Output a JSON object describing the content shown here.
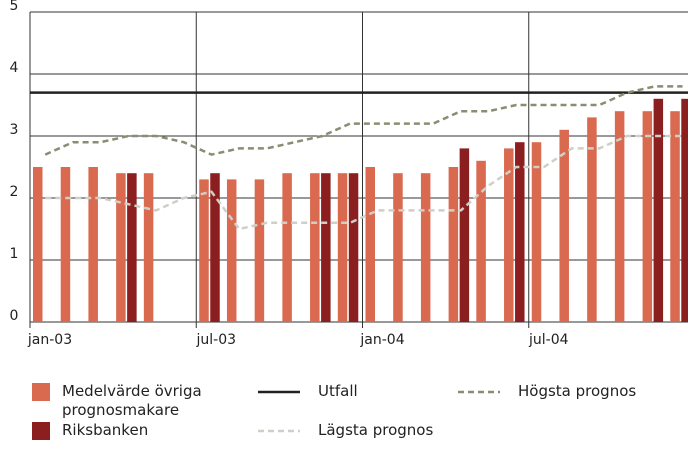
{
  "chart_data": {
    "type": "bar-line",
    "categories": [
      "jan-03",
      null,
      null,
      null,
      null,
      null,
      "jul-03",
      null,
      null,
      null,
      null,
      null,
      "jan-04",
      null,
      null,
      null,
      null,
      null,
      "jul-04",
      null,
      null,
      null,
      null,
      null
    ],
    "ylim": [
      0,
      5
    ],
    "yticks": [
      0,
      1,
      2,
      3,
      4,
      5
    ],
    "grid": true,
    "series": [
      {
        "name": "Riksbanken",
        "type": "bar",
        "color": "#8b1f1f",
        "values": [
          null,
          null,
          null,
          2.4,
          null,
          null,
          2.4,
          null,
          null,
          null,
          2.4,
          2.4,
          null,
          null,
          null,
          2.8,
          null,
          2.9,
          null,
          null,
          null,
          null,
          3.6,
          3.6
        ]
      },
      {
        "name": "Medelvärde övriga prognosmakare",
        "type": "bar",
        "color": "#d9694f",
        "values": [
          2.5,
          2.5,
          2.5,
          2.4,
          2.4,
          null,
          2.3,
          2.3,
          2.3,
          2.4,
          2.4,
          2.4,
          2.5,
          2.4,
          2.4,
          2.5,
          2.6,
          2.8,
          2.9,
          3.1,
          3.3,
          3.4,
          3.4,
          3.4
        ]
      },
      {
        "name": "Utfall",
        "type": "hline",
        "color": "#222222",
        "value": 3.7
      },
      {
        "name": "Lägsta prognos",
        "type": "line",
        "color": "#cfcfc8",
        "dash": true,
        "values": [
          2.0,
          2.0,
          2.0,
          1.9,
          1.8,
          2.0,
          2.1,
          1.5,
          1.6,
          1.6,
          1.6,
          1.6,
          1.8,
          1.8,
          1.8,
          1.8,
          2.2,
          2.5,
          2.5,
          2.8,
          2.8,
          3.0,
          3.0,
          3.0
        ]
      },
      {
        "name": "Högsta prognos",
        "type": "line",
        "color": "#8c8c72",
        "dash": true,
        "values": [
          2.7,
          2.9,
          2.9,
          3.0,
          3.0,
          2.9,
          2.7,
          2.8,
          2.8,
          2.9,
          3.0,
          3.2,
          3.2,
          3.2,
          3.2,
          3.4,
          3.4,
          3.5,
          3.5,
          3.5,
          3.5,
          3.7,
          3.8,
          3.8
        ]
      }
    ]
  }
}
